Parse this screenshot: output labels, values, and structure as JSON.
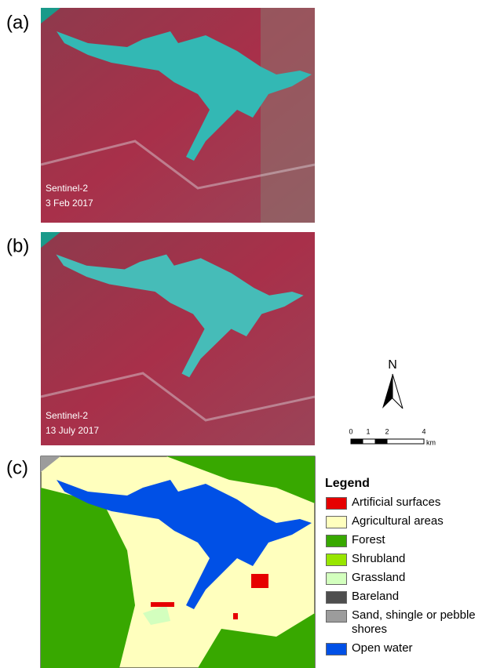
{
  "panels": [
    {
      "label": "(a)",
      "caption": [
        "Sentinel-2",
        "3 Feb 2017"
      ]
    },
    {
      "label": "(b)",
      "caption": [
        "Sentinel-2",
        "13 July 2017"
      ]
    },
    {
      "label": "(c)"
    }
  ],
  "north_arrow": {
    "label": "N"
  },
  "scale_bar": {
    "ticks": [
      "0",
      "1",
      "2",
      "4"
    ],
    "unit": "km"
  },
  "legend": {
    "title": "Legend",
    "items": [
      {
        "label": "Artificial surfaces",
        "color": "#e60000"
      },
      {
        "label": "Agricultural areas",
        "color": "#ffffbe"
      },
      {
        "label": "Forest",
        "color": "#38a800"
      },
      {
        "label": "Shrubland",
        "color": "#98e600"
      },
      {
        "label": "Grassland",
        "color": "#d3ffbe"
      },
      {
        "label": "Bareland",
        "color": "#4e4e4e"
      },
      {
        "label": "Sand, shingle or pebble shores",
        "color": "#9c9c9c"
      },
      {
        "label": "Open water",
        "color": "#0050e6"
      }
    ]
  }
}
